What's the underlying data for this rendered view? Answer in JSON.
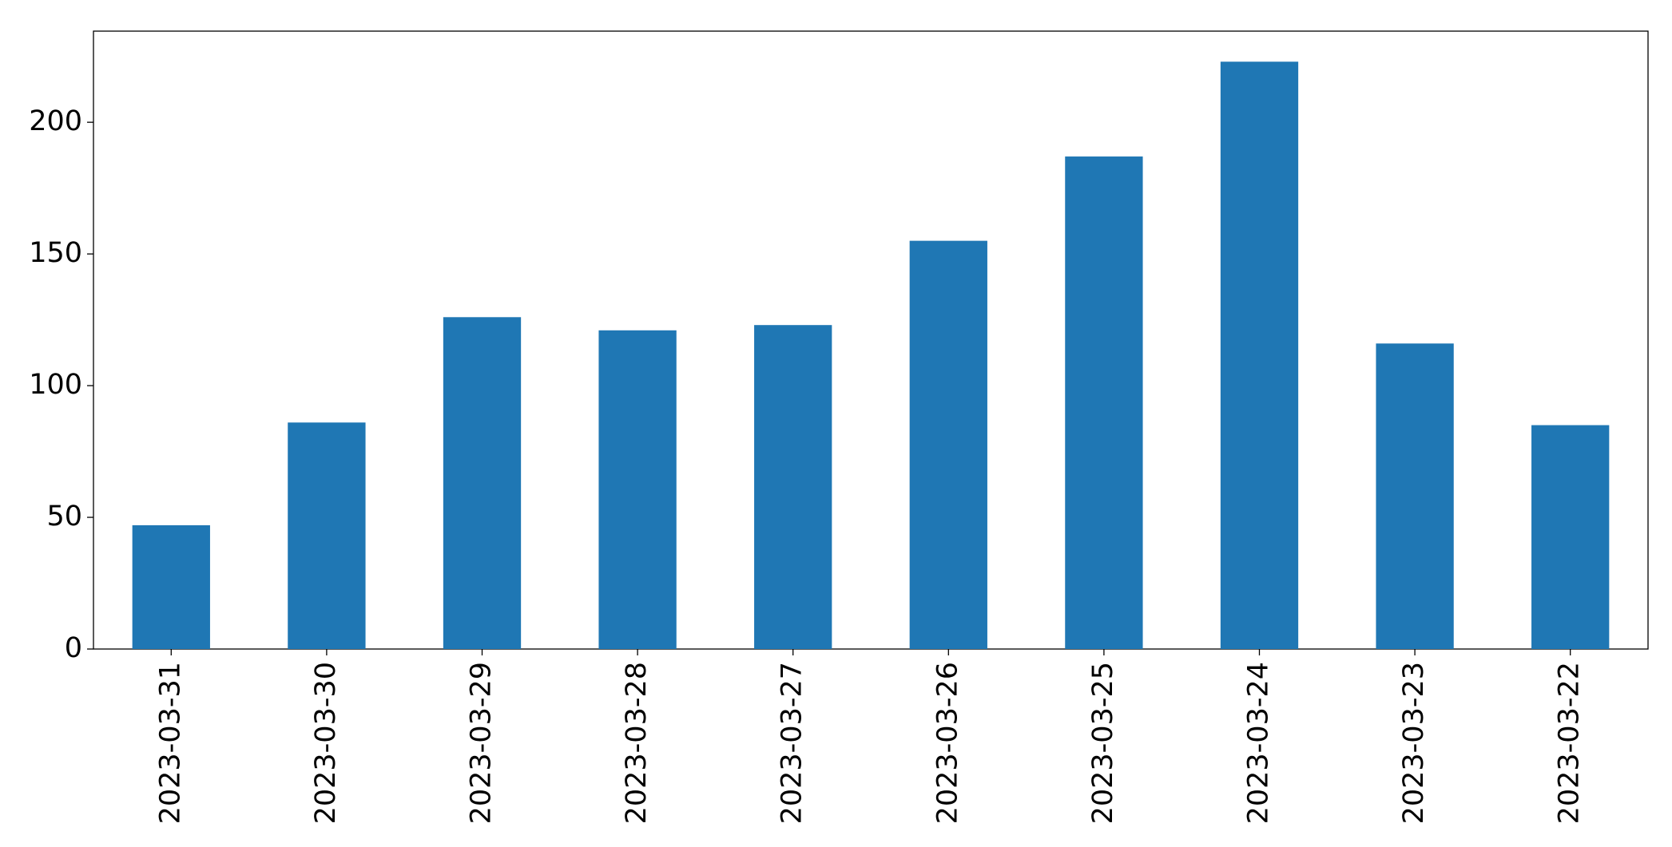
{
  "chart_data": {
    "type": "bar",
    "categories": [
      "2023-03-31",
      "2023-03-30",
      "2023-03-29",
      "2023-03-28",
      "2023-03-27",
      "2023-03-26",
      "2023-03-25",
      "2023-03-24",
      "2023-03-23",
      "2023-03-22"
    ],
    "values": [
      47,
      86,
      126,
      121,
      123,
      155,
      187,
      223,
      116,
      85
    ],
    "color": "#1f77b4",
    "ylim": [
      0,
      234.6
    ],
    "yticks": [
      0,
      50,
      100,
      150,
      200
    ],
    "grid": false
  }
}
